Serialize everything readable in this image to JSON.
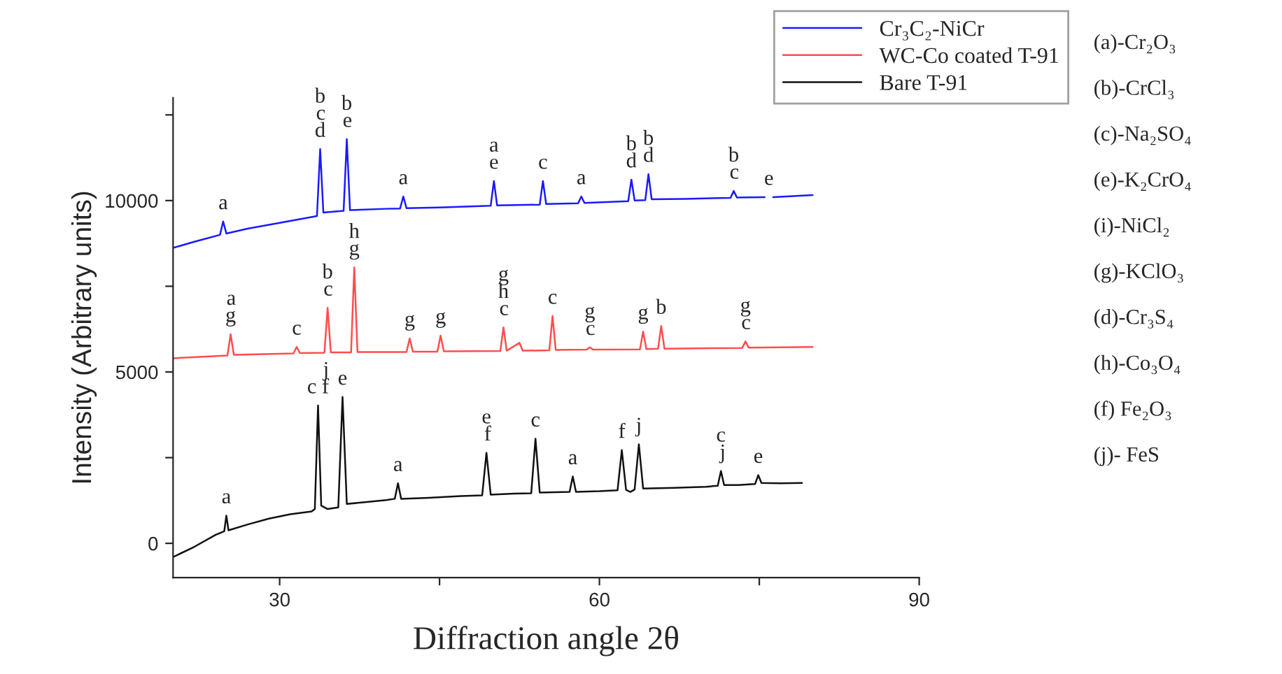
{
  "chart_data": {
    "type": "line",
    "xlabel": "Diffraction angle 2θ",
    "ylabel": "Intensity (Arbitrary units)",
    "xlim": [
      20,
      90
    ],
    "xticks": [
      30,
      {
        "value": 45,
        "label": null
      },
      60,
      {
        "value": 75,
        "label": null
      },
      90
    ],
    "ylim": [
      -1000,
      13000
    ],
    "yticks": [
      0,
      {
        "value": 2500,
        "label": null
      },
      5000,
      {
        "value": 7500,
        "label": null
      },
      10000,
      {
        "value": 12500,
        "label": null
      }
    ],
    "grid": false,
    "legend": "top right",
    "marker": "none",
    "line_style": "solid",
    "series": [
      {
        "name": "Cr₃C₂-NiCr",
        "color": "#1a1aff",
        "x": [
          20,
          22,
          24.4,
          24.7,
          25,
          27,
          30,
          33.5,
          33.8,
          34.1,
          36,
          36.3,
          36.6,
          40,
          41.3,
          41.6,
          41.9,
          45,
          49.8,
          50.1,
          50.4,
          54.4,
          54.7,
          55,
          58,
          58.3,
          58.6,
          62.7,
          63,
          63.3,
          64.3,
          64.6,
          64.9,
          68,
          72.3,
          72.6,
          72.9,
          75.5,
          75.9,
          76.3,
          80
        ],
        "values": [
          8620,
          8800,
          9000,
          9390,
          9040,
          9180,
          9350,
          9550,
          11500,
          9650,
          9700,
          11790,
          9720,
          9760,
          9770,
          10120,
          9780,
          9800,
          9850,
          10570,
          9860,
          9880,
          10570,
          9900,
          9920,
          10120,
          9930,
          9980,
          10610,
          10000,
          10010,
          10770,
          10040,
          10050,
          10080,
          10280,
          10090,
          10100,
          null,
          10100,
          10160
        ]
      },
      {
        "name": "WC-Co coated T-91",
        "color": "#ff4d4d",
        "x": [
          20,
          25.1,
          25.4,
          25.7,
          31.3,
          31.6,
          31.9,
          34.2,
          34.5,
          34.8,
          36.7,
          37,
          37.3,
          41.9,
          42.2,
          42.5,
          44.8,
          45.1,
          45.4,
          50.7,
          51,
          51.3,
          52.5,
          52.8,
          55.3,
          55.6,
          55.9,
          58.8,
          59.1,
          59.4,
          63.8,
          64.1,
          64.4,
          65.5,
          65.8,
          66.1,
          73.4,
          73.7,
          74,
          80
        ],
        "values": [
          5400,
          5480,
          6100,
          5500,
          5540,
          5730,
          5550,
          5560,
          6870,
          5570,
          5570,
          8050,
          5580,
          5580,
          5980,
          5590,
          5590,
          6060,
          5600,
          5610,
          6300,
          5620,
          5850,
          5620,
          5630,
          6630,
          5640,
          5650,
          5720,
          5650,
          5660,
          6180,
          5670,
          5680,
          6340,
          5680,
          5700,
          5890,
          5710,
          5730
        ]
      },
      {
        "name": "Bare T-91",
        "color": "#111111",
        "x": [
          20,
          22,
          24,
          24.8,
          25,
          25.2,
          27,
          29,
          31,
          33,
          33.3,
          33.6,
          33.9,
          34.5,
          35.5,
          35.9,
          36.3,
          38,
          40,
          40.8,
          41.1,
          41.4,
          44,
          47,
          49,
          49.4,
          49.8,
          52,
          53.6,
          54,
          54.4,
          57.2,
          57.5,
          57.8,
          60,
          61.7,
          62.1,
          62.5,
          62.9,
          63.3,
          63.7,
          64.1,
          67,
          70,
          71.1,
          71.4,
          71.7,
          73,
          74.6,
          74.9,
          75.2,
          77,
          79
        ],
        "values": [
          -400,
          -100,
          250,
          350,
          810,
          380,
          550,
          720,
          850,
          930,
          1000,
          4020,
          1100,
          1000,
          1050,
          4270,
          1150,
          1200,
          1260,
          1300,
          1750,
          1300,
          1330,
          1380,
          1400,
          2640,
          1420,
          1450,
          1460,
          3050,
          1480,
          1500,
          1950,
          1500,
          1520,
          1550,
          2720,
          1560,
          1500,
          1570,
          2890,
          1600,
          1620,
          1650,
          1680,
          2110,
          1700,
          1700,
          1730,
          1990,
          1760,
          1750,
          1760
        ]
      }
    ],
    "annotations": [
      {
        "text": "a",
        "x": 24.7,
        "y": 9390
      },
      {
        "text": "b\nc\nd",
        "x": 33.8,
        "y": 11500
      },
      {
        "text": "b\ne",
        "x": 36.3,
        "y": 11790
      },
      {
        "text": "a",
        "x": 41.6,
        "y": 10120
      },
      {
        "text": "a\ne",
        "x": 50.1,
        "y": 10570
      },
      {
        "text": "c",
        "x": 54.7,
        "y": 10570
      },
      {
        "text": "a",
        "x": 58.3,
        "y": 10120
      },
      {
        "text": "b\nd",
        "x": 63,
        "y": 10610
      },
      {
        "text": "b\nd",
        "x": 64.6,
        "y": 10770
      },
      {
        "text": "b\nc",
        "x": 72.6,
        "y": 10280
      },
      {
        "text": "e",
        "x": 75.9,
        "y": 10100
      },
      {
        "text": "a\ng",
        "x": 25.4,
        "y": 6100
      },
      {
        "text": "c",
        "x": 31.6,
        "y": 5730
      },
      {
        "text": "b\nc",
        "x": 34.5,
        "y": 6870
      },
      {
        "text": "h\ng",
        "x": 37,
        "y": 8050
      },
      {
        "text": "g",
        "x": 42.2,
        "y": 5980
      },
      {
        "text": "g",
        "x": 45.1,
        "y": 6060
      },
      {
        "text": "g\nh\nc",
        "x": 51,
        "y": 6300
      },
      {
        "text": "c",
        "x": 55.6,
        "y": 6630
      },
      {
        "text": "g\nc",
        "x": 59.1,
        "y": 5720
      },
      {
        "text": "g",
        "x": 64.1,
        "y": 6180
      },
      {
        "text": "b",
        "x": 65.8,
        "y": 6340
      },
      {
        "text": "g\nc",
        "x": 73.7,
        "y": 5890
      },
      {
        "text": "a",
        "x": 25,
        "y": 810
      },
      {
        "text": "j\nc f",
        "x": 33.6,
        "y": 4020
      },
      {
        "text": "e",
        "x": 35.9,
        "y": 4270
      },
      {
        "text": "a",
        "x": 41.1,
        "y": 1750
      },
      {
        "text": "e\nf",
        "x": 49.4,
        "y": 2640
      },
      {
        "text": "c",
        "x": 54,
        "y": 3050
      },
      {
        "text": "a",
        "x": 57.5,
        "y": 1950
      },
      {
        "text": "f",
        "x": 62.1,
        "y": 2720
      },
      {
        "text": "j",
        "x": 63.7,
        "y": 2890
      },
      {
        "text": "c\nj",
        "x": 71.4,
        "y": 2110
      },
      {
        "text": "e",
        "x": 74.9,
        "y": 1990
      },
      "(a)-Cr₂O₃",
      "(b)-CrCl₃",
      "(c)-Na₂SO₄",
      "(e)-K₂CrO₄",
      "(i)-NiCl₂",
      "(g)-KClO₃",
      "(d)-Cr₃S₄",
      "(h)-Co₃O₄",
      "(f) Fe₂O₃",
      "(j)- FeS"
    ]
  }
}
